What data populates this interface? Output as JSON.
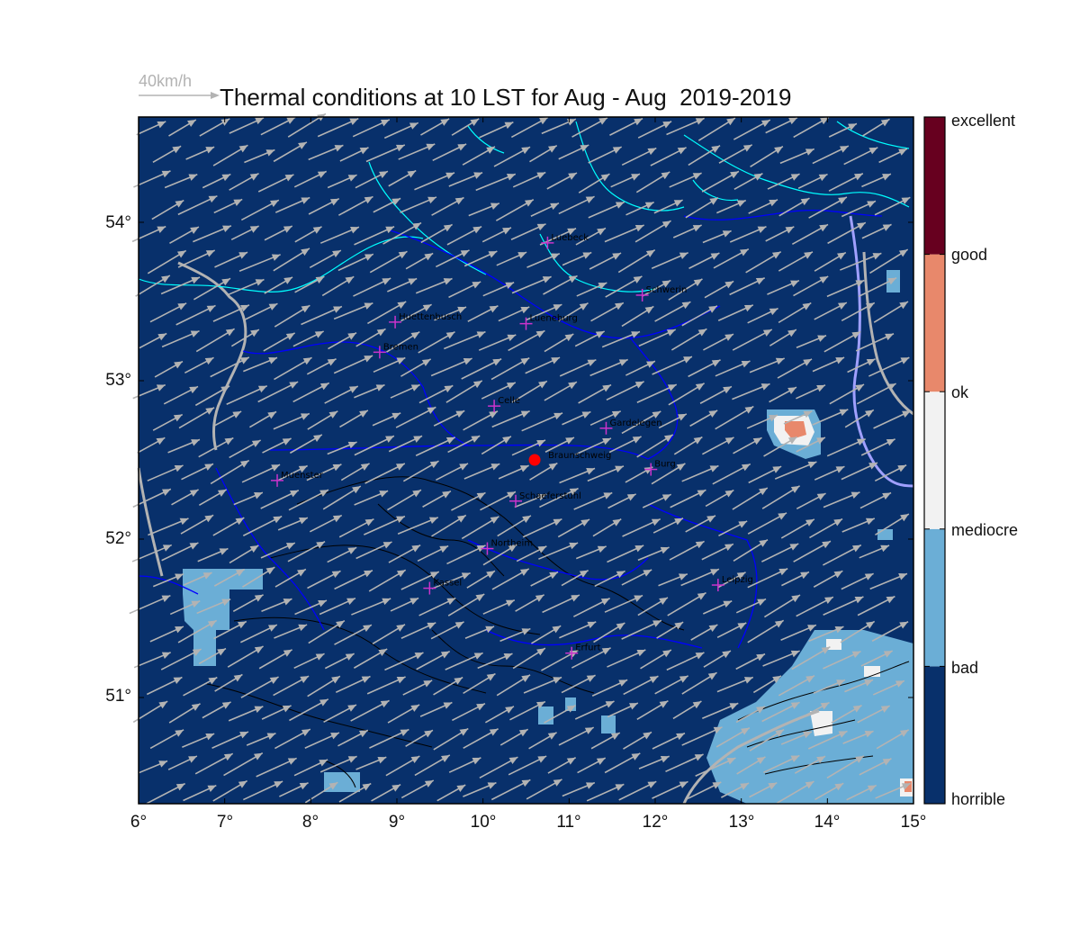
{
  "title": "Thermal conditions at 10 LST for Aug - Aug  2019-2019",
  "reference_wind": "40km/h",
  "map": {
    "lon_range": [
      6,
      15
    ],
    "lat_range": [
      50.3,
      54.7
    ],
    "x_ticks": [
      "6°",
      "7°",
      "8°",
      "9°",
      "10°",
      "11°",
      "12°",
      "13°",
      "14°",
      "15°"
    ],
    "y_ticks": [
      "54°",
      "53°",
      "52°",
      "51°"
    ],
    "background_color": "#08306b",
    "wind_arrow_color": "#b3b3b3",
    "coast_color": "#00ffff",
    "border_color": "#0000ff",
    "river_color": "#b3b3b3"
  },
  "cities": [
    {
      "name": "Luebeck",
      "lon": 10.75,
      "lat": 53.87
    },
    {
      "name": "Schwerin",
      "lon": 11.85,
      "lat": 53.54
    },
    {
      "name": "Huettenbusch",
      "lon": 8.98,
      "lat": 53.37
    },
    {
      "name": "Lueneburg",
      "lon": 10.5,
      "lat": 53.36
    },
    {
      "name": "Bremen",
      "lon": 8.8,
      "lat": 53.18
    },
    {
      "name": "Celle",
      "lon": 10.13,
      "lat": 52.84
    },
    {
      "name": "Gardelegen",
      "lon": 11.43,
      "lat": 52.7
    },
    {
      "name": "Burg",
      "lon": 11.95,
      "lat": 52.44
    },
    {
      "name": "Muenster",
      "lon": 7.61,
      "lat": 52.37
    },
    {
      "name": "Schaeferstuhl",
      "lon": 10.38,
      "lat": 52.24
    },
    {
      "name": "Northeim",
      "lon": 10.05,
      "lat": 51.94
    },
    {
      "name": "Kassel",
      "lon": 9.38,
      "lat": 51.69
    },
    {
      "name": "Leipzig",
      "lon": 12.73,
      "lat": 51.71
    },
    {
      "name": "Erfurt",
      "lon": 11.03,
      "lat": 51.28
    }
  ],
  "home_site": {
    "name": "Braunschweig",
    "lon": 10.6,
    "lat": 52.5,
    "color": "#ff0000"
  },
  "colorbar": {
    "categories": [
      {
        "label": "horrible",
        "color": "#08306b"
      },
      {
        "label": "bad",
        "color": "#6baed6"
      },
      {
        "label": "mediocre",
        "color": "#f2f2f2"
      },
      {
        "label": "ok",
        "color": "#e8886b"
      },
      {
        "label": "good",
        "color": "#67001f"
      },
      {
        "label": "excellent",
        "color": "#67001f"
      }
    ]
  }
}
